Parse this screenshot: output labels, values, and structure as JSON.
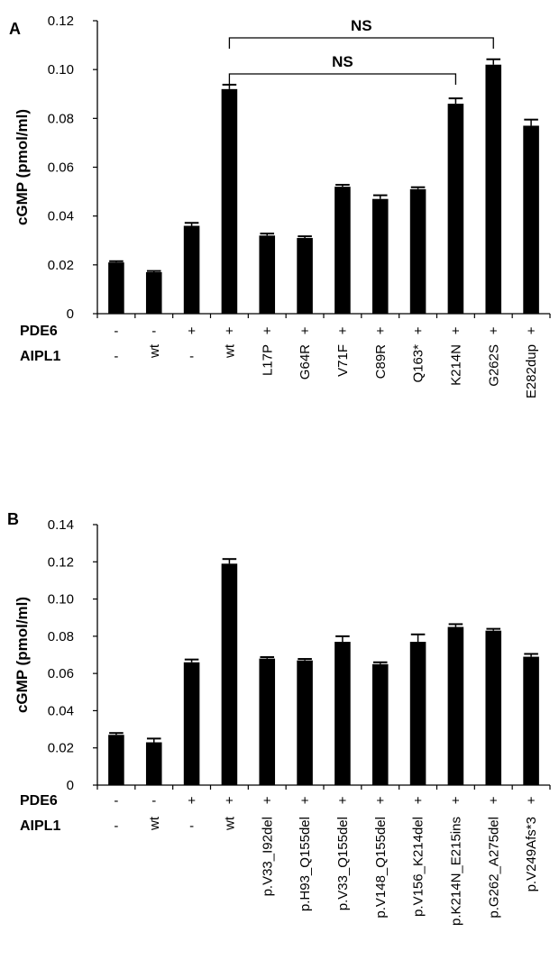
{
  "chart_data": [
    {
      "type": "bar",
      "panel": "A",
      "ylabel": "cGMP (pmol/ml)",
      "ylim": [
        0,
        0.12
      ],
      "yticks": [
        "0",
        "0.02",
        "0.04",
        "0.06",
        "0.08",
        "0.10",
        "0.12"
      ],
      "row_labels": [
        "PDE6",
        "AIPL1"
      ],
      "pde6": [
        "-",
        "-",
        "+",
        "+",
        "+",
        "+",
        "+",
        "+",
        "+",
        "+",
        "+",
        "+"
      ],
      "categories": [
        "-",
        "wt",
        "-",
        "wt",
        "L17P",
        "G64R",
        "V71F",
        "C89R",
        "Q163*",
        "K214N",
        "G262S",
        "E282dup"
      ],
      "values": [
        0.021,
        0.017,
        0.036,
        0.092,
        0.032,
        0.031,
        0.052,
        0.047,
        0.051,
        0.086,
        0.102,
        0.077
      ],
      "errors": [
        0.0005,
        0.0005,
        0.0012,
        0.0018,
        0.0008,
        0.0007,
        0.0008,
        0.0015,
        0.0008,
        0.0022,
        0.0022,
        0.0025
      ],
      "annotations": [
        {
          "text": "NS",
          "from": 3,
          "to": 10
        },
        {
          "text": "NS",
          "from": 3,
          "to": 9
        }
      ]
    },
    {
      "type": "bar",
      "panel": "B",
      "ylabel": "cGMP (pmol/ml)",
      "ylim": [
        0,
        0.14
      ],
      "yticks": [
        "0",
        "0.02",
        "0.04",
        "0.06",
        "0.08",
        "0.10",
        "0.12",
        "0.14"
      ],
      "row_labels": [
        "PDE6",
        "AIPL1"
      ],
      "pde6": [
        "-",
        "-",
        "+",
        "+",
        "+",
        "+",
        "+",
        "+",
        "+",
        "+",
        "+",
        "+"
      ],
      "categories": [
        "-",
        "wt",
        "-",
        "wt",
        "p.V33_I92del",
        "p.H93_Q155del",
        "p.V33_Q155del",
        "p.V148_Q155del",
        "p.V156_K214del",
        "p.K214N_E215ins",
        "p.G262_A275del",
        "p.V249Afs*3"
      ],
      "values": [
        0.027,
        0.023,
        0.066,
        0.119,
        0.068,
        0.067,
        0.077,
        0.065,
        0.077,
        0.085,
        0.083,
        0.069
      ],
      "errors": [
        0.001,
        0.002,
        0.0015,
        0.0025,
        0.0008,
        0.0008,
        0.003,
        0.001,
        0.004,
        0.0015,
        0.001,
        0.0015
      ],
      "annotations": []
    }
  ]
}
